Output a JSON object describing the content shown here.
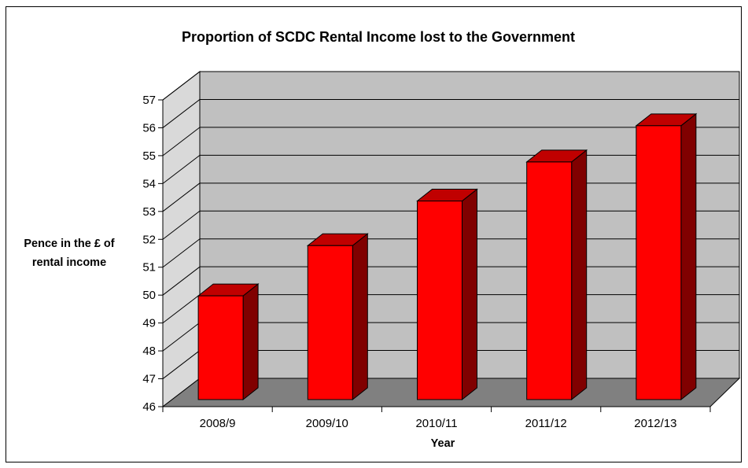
{
  "chart_data": {
    "type": "bar",
    "title": "Proportion of SCDC Rental Income lost to the Government",
    "xlabel": "Year",
    "ylabel": "Pence in the £ of rental income",
    "ylabel_lines": [
      "Pence in the £ of",
      "rental income"
    ],
    "categories": [
      "2008/9",
      "2009/10",
      "2010/11",
      "2011/12",
      "2012/13"
    ],
    "values": [
      50.2,
      52.0,
      53.6,
      55.0,
      56.3
    ],
    "ylim": [
      46,
      57
    ],
    "yticks": [
      "46",
      "47",
      "48",
      "49",
      "50",
      "51",
      "52",
      "53",
      "54",
      "55",
      "56",
      "57"
    ],
    "grid": true,
    "legend": "none",
    "colors": {
      "bar_front": "#ff0000",
      "bar_side": "#800000",
      "bar_top": "#c00000",
      "back_wall": "#c0c0c0",
      "side_wall": "#d9d9d9",
      "floor": "#808080"
    }
  }
}
